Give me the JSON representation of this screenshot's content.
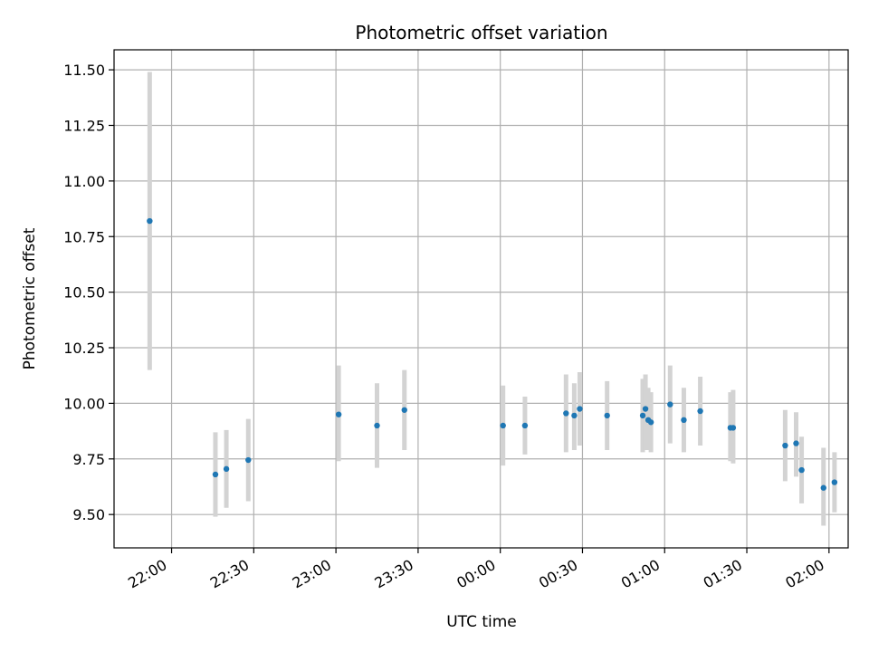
{
  "chart_data": {
    "type": "scatter",
    "title": "Photometric offset variation",
    "xlabel": "UTC time",
    "ylabel": "Photometric offset",
    "xlim": [
      "21:39",
      "02:07"
    ],
    "ylim": [
      9.35,
      11.59
    ],
    "x_tick_labels": [
      "22:00",
      "22:30",
      "23:00",
      "23:30",
      "00:00",
      "00:30",
      "01:00",
      "01:30",
      "02:00"
    ],
    "x_ticks": [
      "22:00",
      "22:30",
      "23:00",
      "23:30",
      "00:00",
      "00:30",
      "01:00",
      "01:30",
      "02:00"
    ],
    "y_ticks": [
      9.5,
      9.75,
      10.0,
      10.25,
      10.5,
      10.75,
      11.0,
      11.25,
      11.5
    ],
    "y_tick_labels": [
      "9.50",
      "9.75",
      "10.00",
      "10.25",
      "10.50",
      "10.75",
      "11.00",
      "11.25",
      "11.50"
    ],
    "grid": true,
    "colors": {
      "point": "#1f77b4",
      "errorbar": "#d3d3d3",
      "grid": "#b0b0b0"
    },
    "points": [
      {
        "t": "21:52",
        "y": 10.82,
        "lo": 10.15,
        "hi": 11.49
      },
      {
        "t": "22:16",
        "y": 9.68,
        "lo": 9.49,
        "hi": 9.87
      },
      {
        "t": "22:20",
        "y": 9.705,
        "lo": 9.53,
        "hi": 9.88
      },
      {
        "t": "22:28",
        "y": 9.745,
        "lo": 9.56,
        "hi": 9.93
      },
      {
        "t": "23:01",
        "y": 9.95,
        "lo": 9.74,
        "hi": 10.17
      },
      {
        "t": "23:15",
        "y": 9.9,
        "lo": 9.71,
        "hi": 10.09
      },
      {
        "t": "23:25",
        "y": 9.97,
        "lo": 9.79,
        "hi": 10.15
      },
      {
        "t": "00:01",
        "y": 9.9,
        "lo": 9.72,
        "hi": 10.08
      },
      {
        "t": "00:09",
        "y": 9.9,
        "lo": 9.77,
        "hi": 10.03
      },
      {
        "t": "00:24",
        "y": 9.955,
        "lo": 9.78,
        "hi": 10.13
      },
      {
        "t": "00:27",
        "y": 9.945,
        "lo": 9.79,
        "hi": 10.09
      },
      {
        "t": "00:29",
        "y": 9.975,
        "lo": 9.81,
        "hi": 10.14
      },
      {
        "t": "00:39",
        "y": 9.945,
        "lo": 9.79,
        "hi": 10.1
      },
      {
        "t": "00:52",
        "y": 9.945,
        "lo": 9.78,
        "hi": 10.11
      },
      {
        "t": "00:53",
        "y": 9.975,
        "lo": 9.79,
        "hi": 10.13
      },
      {
        "t": "00:54",
        "y": 9.925,
        "lo": 9.79,
        "hi": 10.07
      },
      {
        "t": "00:55",
        "y": 9.915,
        "lo": 9.78,
        "hi": 10.05
      },
      {
        "t": "01:02",
        "y": 9.995,
        "lo": 9.82,
        "hi": 10.17
      },
      {
        "t": "01:07",
        "y": 9.925,
        "lo": 9.78,
        "hi": 10.07
      },
      {
        "t": "01:13",
        "y": 9.965,
        "lo": 9.81,
        "hi": 10.12
      },
      {
        "t": "01:24",
        "y": 9.89,
        "lo": 9.74,
        "hi": 10.05
      },
      {
        "t": "01:25",
        "y": 9.89,
        "lo": 9.73,
        "hi": 10.06
      },
      {
        "t": "01:44",
        "y": 9.81,
        "lo": 9.65,
        "hi": 9.97
      },
      {
        "t": "01:48",
        "y": 9.82,
        "lo": 9.67,
        "hi": 9.96
      },
      {
        "t": "01:50",
        "y": 9.7,
        "lo": 9.55,
        "hi": 9.85
      },
      {
        "t": "01:58",
        "y": 9.62,
        "lo": 9.45,
        "hi": 9.8
      },
      {
        "t": "02:02",
        "y": 9.645,
        "lo": 9.51,
        "hi": 9.78
      }
    ]
  }
}
